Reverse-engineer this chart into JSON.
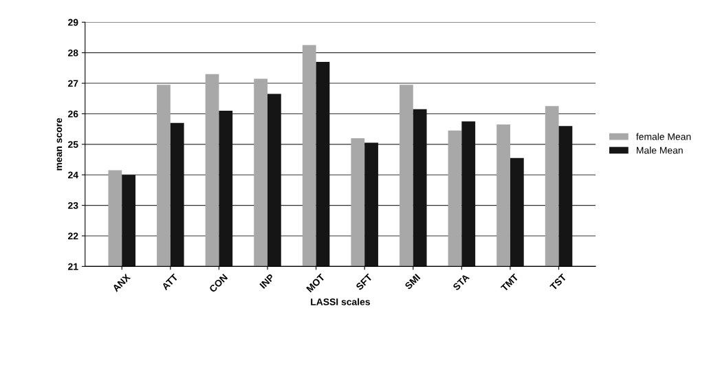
{
  "chart_data": {
    "type": "bar",
    "xlabel": "LASSI scales",
    "ylabel": "mean score",
    "categories": [
      "ANX",
      "ATT",
      "CON",
      "INP",
      "MOT",
      "SFT",
      "SMI",
      "STA",
      "TMT",
      "TST"
    ],
    "series": [
      {
        "name": "female Mean",
        "color": "#a8a8a8",
        "values": [
          24.15,
          26.95,
          27.3,
          27.15,
          28.25,
          25.2,
          26.95,
          25.45,
          25.65,
          26.25
        ]
      },
      {
        "name": "Male Mean",
        "color": "#151515",
        "values": [
          24.0,
          25.7,
          26.1,
          26.65,
          27.7,
          25.05,
          26.15,
          25.75,
          24.55,
          25.6
        ]
      }
    ],
    "ylim": [
      21,
      29
    ],
    "yticks": [
      21,
      22,
      23,
      24,
      25,
      26,
      27,
      28,
      29
    ],
    "grid": "y",
    "legend": "right"
  }
}
